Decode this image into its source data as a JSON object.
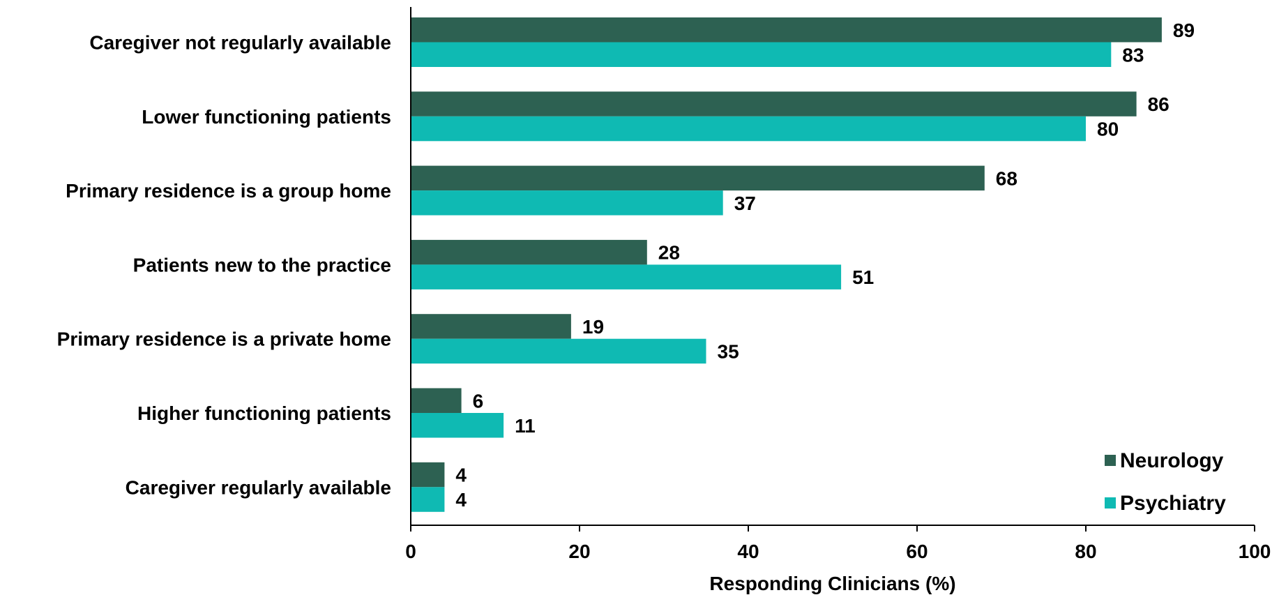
{
  "chart_data": {
    "type": "bar",
    "orientation": "horizontal",
    "categories": [
      "Caregiver not regularly available",
      "Lower functioning patients",
      "Primary residence is a group home",
      "Patients new to the practice",
      "Primary residence is a private home",
      "Higher functioning patients",
      "Caregiver regularly available"
    ],
    "series": [
      {
        "name": "Neurology",
        "color": "#2d6152",
        "values": [
          89,
          86,
          68,
          28,
          19,
          6,
          4
        ]
      },
      {
        "name": "Psychiatry",
        "color": "#0fbab3",
        "values": [
          83,
          80,
          37,
          51,
          35,
          11,
          4
        ]
      }
    ],
    "xlabel": "Responding Clinicians (%)",
    "ylabel": "",
    "xlim": [
      0,
      100
    ],
    "xticks": [
      "0",
      "20",
      "40",
      "60",
      "80",
      "100"
    ],
    "grid": false,
    "legend_position": "bottom-right"
  }
}
